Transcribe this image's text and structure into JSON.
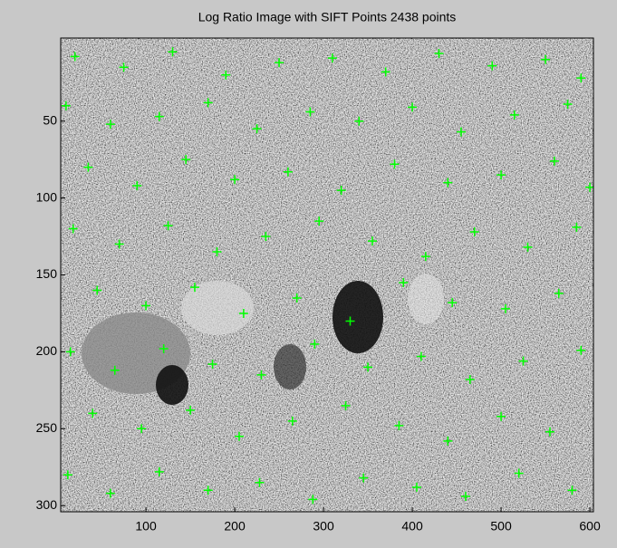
{
  "chart_data": {
    "type": "scatter",
    "title": "Log Ratio Image with SIFT Points 2438 points",
    "series": [
      {
        "color": "#00ff00",
        "x": [
          20,
          75,
          130,
          190,
          250,
          310,
          370,
          430,
          490,
          550,
          590,
          10,
          60,
          115,
          170,
          225,
          285,
          340,
          400,
          455,
          515,
          575,
          35,
          90,
          145,
          200,
          260,
          320,
          380,
          440,
          500,
          560,
          600,
          18,
          70,
          125,
          180,
          235,
          295,
          355,
          415,
          470,
          530,
          585,
          45,
          100,
          155,
          210,
          270,
          330,
          390,
          445,
          505,
          565,
          15,
          65,
          120,
          175,
          230,
          290,
          350,
          410,
          465,
          525,
          590,
          40,
          95,
          150,
          205,
          265,
          325,
          385,
          440,
          500,
          555,
          12,
          60,
          115,
          170,
          228,
          288,
          345,
          405,
          460,
          520,
          580
        ],
        "y": [
          8,
          15,
          5,
          20,
          12,
          9,
          18,
          6,
          14,
          10,
          22,
          40,
          52,
          47,
          38,
          55,
          44,
          50,
          41,
          57,
          46,
          39,
          80,
          92,
          75,
          88,
          83,
          95,
          78,
          90,
          85,
          76,
          93,
          120,
          130,
          118,
          135,
          125,
          115,
          128,
          138,
          122,
          132,
          119,
          160,
          170,
          158,
          175,
          165,
          180,
          155,
          168,
          172,
          162,
          200,
          212,
          198,
          208,
          215,
          195,
          210,
          203,
          218,
          206,
          199,
          240,
          250,
          238,
          255,
          245,
          235,
          248,
          258,
          242,
          252,
          280,
          292,
          278,
          290,
          285,
          296,
          282,
          288,
          294,
          279,
          290
        ]
      }
    ],
    "xlim": [
      4,
      604
    ],
    "ylim": [
      304,
      -4
    ],
    "y_reversed": true,
    "xticks": [
      100,
      200,
      300,
      400,
      500,
      600
    ],
    "yticks": [
      50,
      100,
      150,
      200,
      250,
      300
    ]
  }
}
